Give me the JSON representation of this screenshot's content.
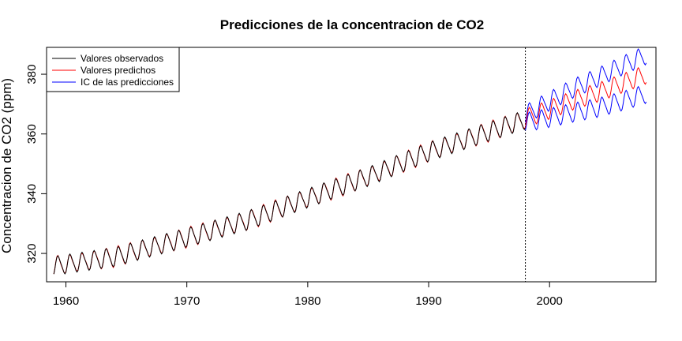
{
  "chart_data": {
    "type": "line",
    "title": "Predicciones de la concentracion de CO2",
    "xlabel": "",
    "ylabel": "Concentracion de CO2 (ppm)",
    "xlim": [
      1958.4,
      2008.8
    ],
    "ylim": [
      310.5,
      389
    ],
    "x_ticks": [
      1960,
      1970,
      1980,
      1990,
      2000
    ],
    "y_ticks": [
      320,
      340,
      360,
      380
    ],
    "forecast_start": 1998.0,
    "observed_end": 1998.0,
    "forecast_end": 2008.0,
    "grid": false,
    "legend_position": "top-left",
    "legend": [
      "Valores observados",
      "Valores predichos",
      "IC de las predicciones"
    ],
    "colors": {
      "observed": "#000000",
      "predicted": "#ff0000",
      "interval": "#0000ff"
    },
    "series": [
      {
        "name": "Valores observados",
        "color": "#000000",
        "x": [
          1959,
          1964,
          1970,
          1975,
          1980,
          1985,
          1990,
          1995,
          1998
        ],
        "values": [
          315.8,
          318.8,
          325.3,
          331.0,
          338.5,
          345.7,
          354.0,
          360.8,
          364.8
        ]
      },
      {
        "name": "Valores predichos",
        "color": "#ff0000",
        "x": [
          1998,
          2000,
          2002,
          2004,
          2006,
          2008
        ],
        "values": [
          365.2,
          368.2,
          371.3,
          373.9,
          376.9,
          380.0
        ]
      },
      {
        "name": "IC de las predicciones",
        "color": "#0000ff",
        "x": [
          1998,
          2000,
          2002,
          2004,
          2006,
          2008
        ],
        "upper": [
          366.5,
          371.0,
          375.3,
          378.9,
          382.8,
          386.5
        ],
        "lower": [
          363.9,
          365.4,
          367.2,
          368.8,
          371.0,
          373.5
        ]
      }
    ],
    "seasonal_amplitude": 3.0
  }
}
